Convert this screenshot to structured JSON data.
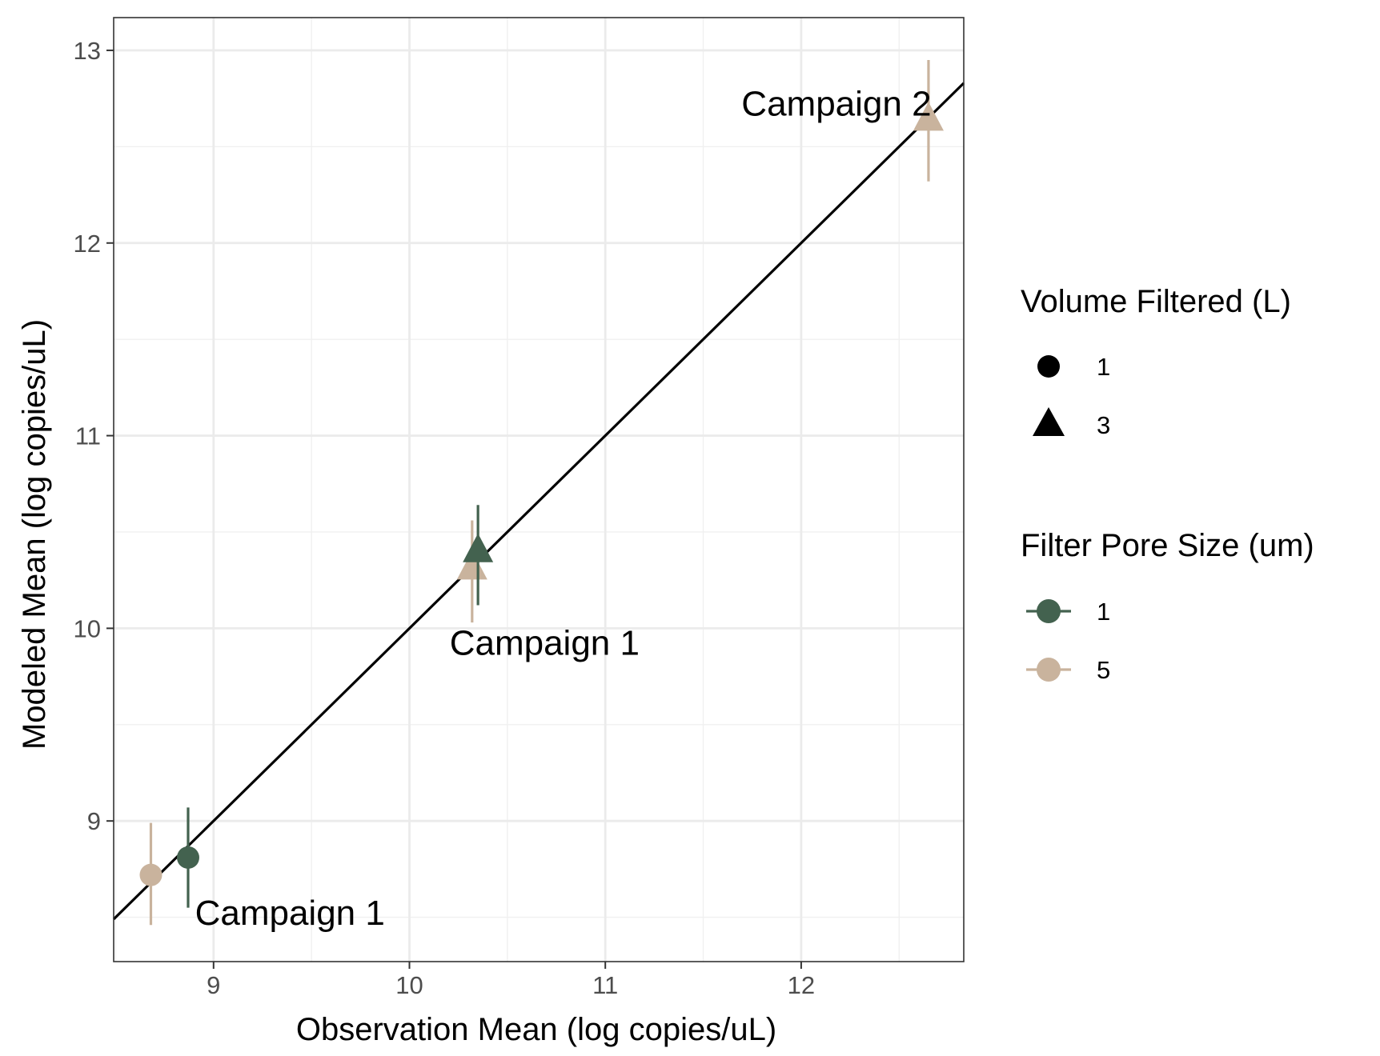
{
  "chart_data": {
    "type": "scatter",
    "xlabel": "Observation Mean (log copies/uL)",
    "ylabel": "Modeled Mean (log copies/uL)",
    "xlim": [
      8.49,
      12.83
    ],
    "ylim": [
      8.27,
      13.17
    ],
    "x_ticks": [
      9,
      10,
      11,
      12
    ],
    "y_ticks": [
      9,
      10,
      11,
      12,
      13
    ],
    "grid": true,
    "reference_line": {
      "slope": 1,
      "intercept": 0,
      "color": "#000000"
    },
    "points": [
      {
        "x": 8.68,
        "y": 8.72,
        "ymin": 8.46,
        "ymax": 8.99,
        "volume": "1",
        "pore": "5"
      },
      {
        "x": 8.87,
        "y": 8.81,
        "ymin": 8.55,
        "ymax": 9.07,
        "volume": "1",
        "pore": "1"
      },
      {
        "x": 10.32,
        "y": 10.31,
        "ymin": 10.03,
        "ymax": 10.56,
        "volume": "3",
        "pore": "5"
      },
      {
        "x": 10.35,
        "y": 10.4,
        "ymin": 10.12,
        "ymax": 10.64,
        "volume": "3",
        "pore": "1"
      },
      {
        "x": 12.65,
        "y": 12.64,
        "ymin": 12.32,
        "ymax": 12.95,
        "volume": "3",
        "pore": "5"
      }
    ],
    "annotations": [
      {
        "text": "Campaign 1",
        "x": 9.39,
        "y": 8.51
      },
      {
        "text": "Campaign 1",
        "x": 10.69,
        "y": 9.91
      },
      {
        "text": "Campaign 2",
        "x": 12.18,
        "y": 12.71
      }
    ],
    "legend": {
      "placement": "right",
      "shape_title": "Volume Filtered (L)",
      "shape_items": [
        {
          "label": "1",
          "shape": "circle"
        },
        {
          "label": "3",
          "shape": "triangle"
        }
      ],
      "color_title": "Filter Pore Size (um)",
      "color_items": [
        {
          "label": "1",
          "color": "#43624f"
        },
        {
          "label": "5",
          "color": "#c9b39d"
        }
      ]
    }
  }
}
